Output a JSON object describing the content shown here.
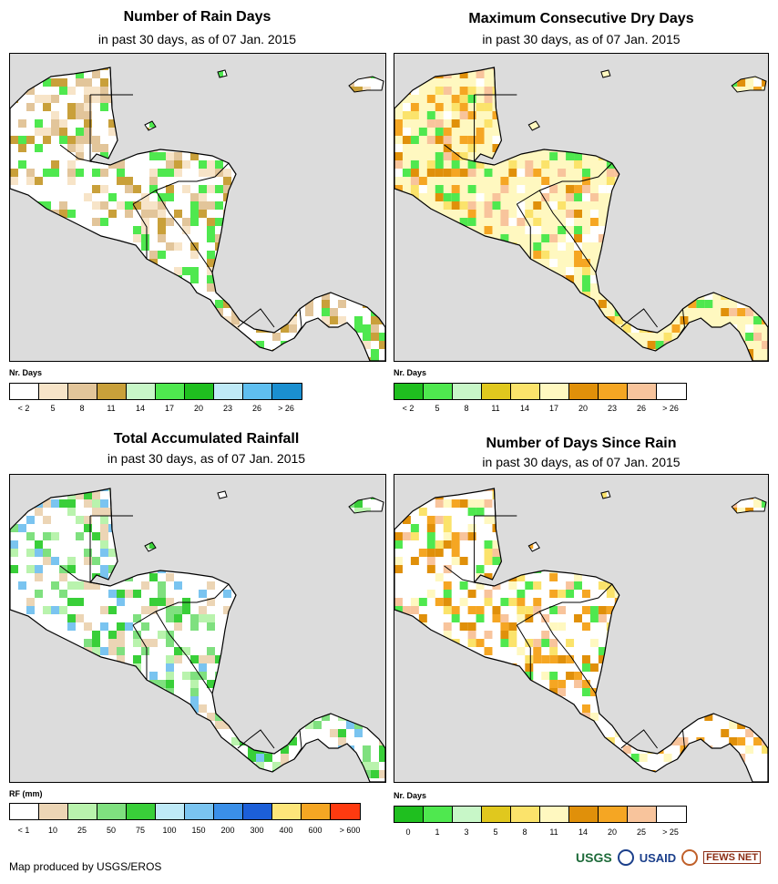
{
  "credit": "Map produced by USGS/EROS",
  "logos": {
    "usgs": "USGS",
    "usaid": "USAID",
    "fews": "FEWS NET"
  },
  "panels": [
    {
      "title": "Number of Rain Days",
      "subtitle": "in past 30 days, as of 07 Jan. 2015",
      "legend_title": "Nr. Days",
      "colors": [
        "#ffffff",
        "#f7e4c8",
        "#e2c59a",
        "#c9a03a",
        "#c8f7c8",
        "#4fe84f",
        "#1fbf1f",
        "#bfeaf7",
        "#5fbff0",
        "#1a8fd0"
      ],
      "labels": [
        "< 2",
        "5",
        "8",
        "11",
        "14",
        "17",
        "20",
        "23",
        "26",
        "> 26"
      ],
      "land_color": "#ffffff",
      "speckle": [
        "#f7e4c8",
        "#e2c59a",
        "#c9a03a",
        "#4fe84f"
      ]
    },
    {
      "title": "Maximum Consecutive Dry Days",
      "subtitle": "in past 30 days, as of 07 Jan. 2015",
      "legend_title": "Nr. Days",
      "colors": [
        "#1fbf1f",
        "#4fe84f",
        "#c8f7c8",
        "#e0c81e",
        "#fbe36b",
        "#fff8c0",
        "#e0900a",
        "#f5a623",
        "#f8c49c",
        "#ffffff"
      ],
      "labels": [
        "< 2",
        "5",
        "8",
        "11",
        "14",
        "17",
        "20",
        "23",
        "26",
        "> 26"
      ],
      "land_color": "#fff8c0",
      "speckle": [
        "#ffffff",
        "#fbe36b",
        "#e0900a",
        "#f8c49c",
        "#4fe84f",
        "#f5a623"
      ]
    },
    {
      "title": "Total Accumulated Rainfall",
      "subtitle": "in past 30 days, as of 07 Jan. 2015",
      "legend_title": "RF (mm)",
      "colors": [
        "#ffffff",
        "#ecd5b5",
        "#b9f3ad",
        "#7fe07f",
        "#39cf39",
        "#bfeaf7",
        "#7ac4f0",
        "#3a8fe8",
        "#1c5fd8",
        "#fde67a",
        "#f5a623",
        "#ff3a10"
      ],
      "labels": [
        "< 1",
        "10",
        "25",
        "50",
        "75",
        "100",
        "150",
        "200",
        "300",
        "400",
        "600",
        "> 600"
      ],
      "land_color": "#ffffff",
      "speckle": [
        "#ecd5b5",
        "#b9f3ad",
        "#7fe07f",
        "#39cf39",
        "#7ac4f0"
      ]
    },
    {
      "title": "Number of Days Since Rain",
      "subtitle": "in past 30 days, as of 07 Jan. 2015",
      "legend_title": "Nr. Days",
      "colors": [
        "#1fbf1f",
        "#4fe84f",
        "#c8f7c8",
        "#e0c81e",
        "#fbe36b",
        "#fff8c0",
        "#e0900a",
        "#f5a623",
        "#f8c49c",
        "#ffffff"
      ],
      "labels": [
        "0",
        "1",
        "3",
        "5",
        "8",
        "11",
        "14",
        "20",
        "25",
        "> 25"
      ],
      "land_color": "#ffffff",
      "speckle": [
        "#e0900a",
        "#f5a623",
        "#fbe36b",
        "#fff8c0",
        "#4fe84f",
        "#f8c49c"
      ]
    }
  ]
}
